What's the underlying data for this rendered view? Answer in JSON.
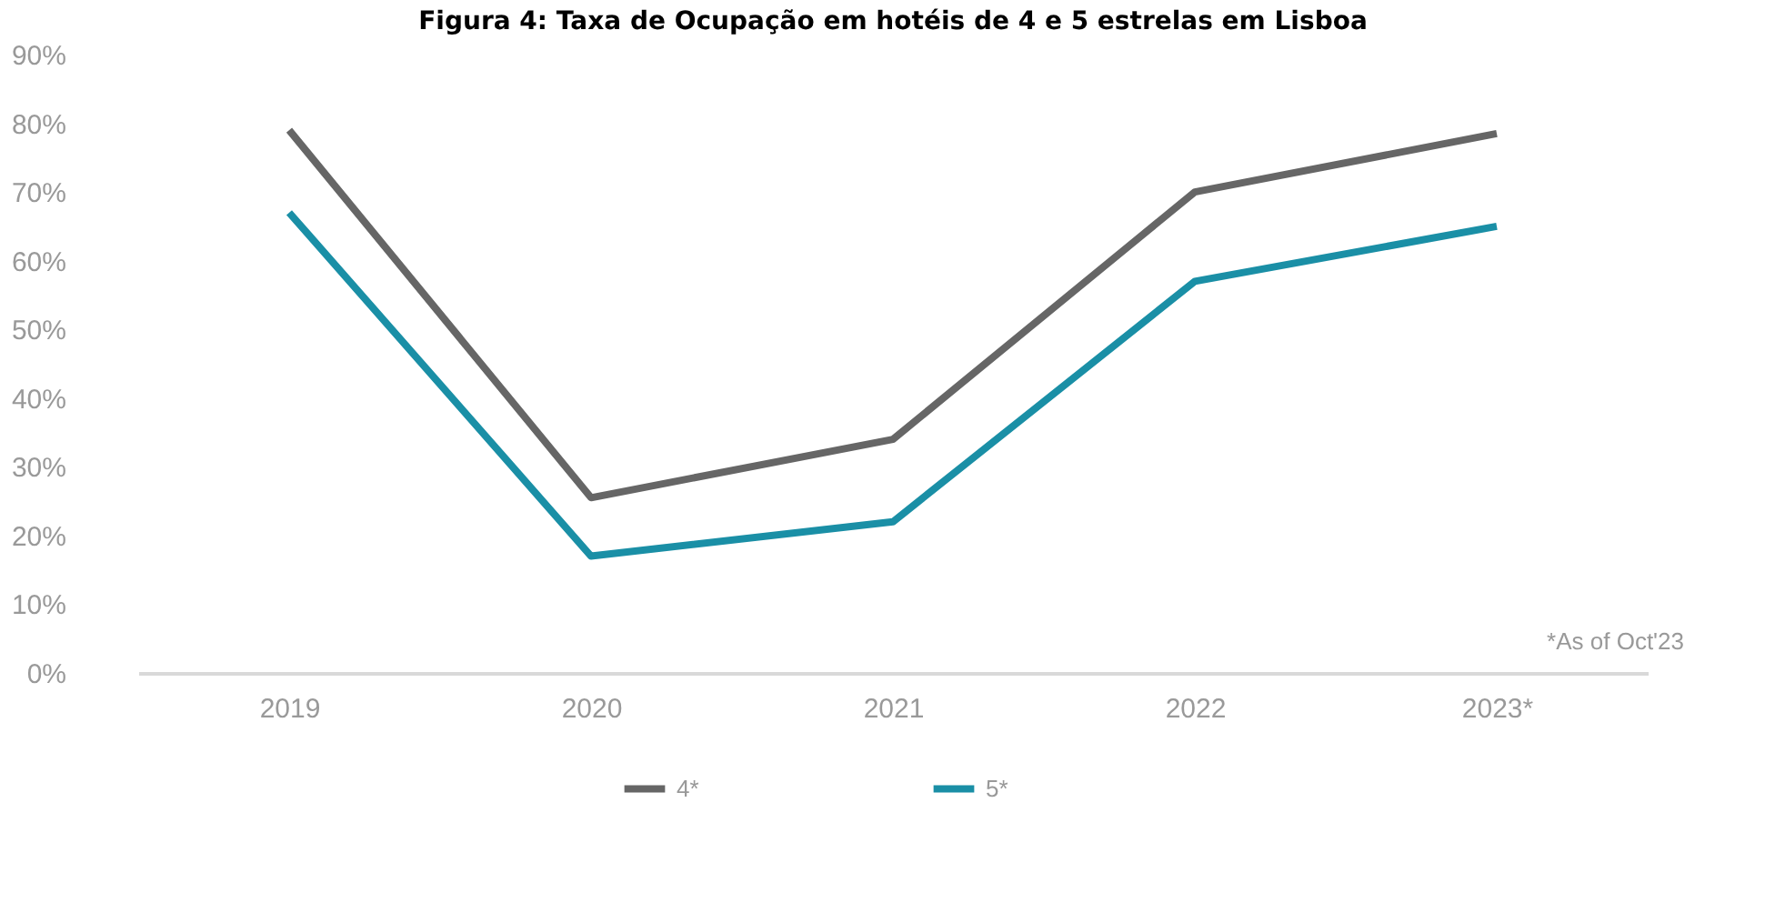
{
  "chart_data": {
    "type": "line",
    "title": "Figura 4: Taxa de Ocupação em hotéis de 4 e 5 estrelas em Lisboa",
    "categories": [
      "2019",
      "2020",
      "2021",
      "2022",
      "2023*"
    ],
    "series": [
      {
        "name": "4*",
        "color": "#666666",
        "values": [
          79,
          25.5,
          34,
          70,
          78.5
        ]
      },
      {
        "name": "5*",
        "color": "#1a8fa6",
        "values": [
          67,
          17,
          22,
          57,
          65
        ]
      }
    ],
    "ylim": [
      0,
      90
    ],
    "yticks": [
      {
        "value": 0,
        "label": "0%"
      },
      {
        "value": 10,
        "label": "10%"
      },
      {
        "value": 20,
        "label": "20%"
      },
      {
        "value": 30,
        "label": "30%"
      },
      {
        "value": 40,
        "label": "40%"
      },
      {
        "value": 50,
        "label": "50%"
      },
      {
        "value": 60,
        "label": "60%"
      },
      {
        "value": 70,
        "label": "70%"
      },
      {
        "value": 80,
        "label": "80%"
      },
      {
        "value": 90,
        "label": "90%"
      }
    ],
    "grid": false,
    "legend": "bottom",
    "marker": "none",
    "line_style": "solid",
    "annotations": [
      "*As of Oct'23"
    ]
  }
}
